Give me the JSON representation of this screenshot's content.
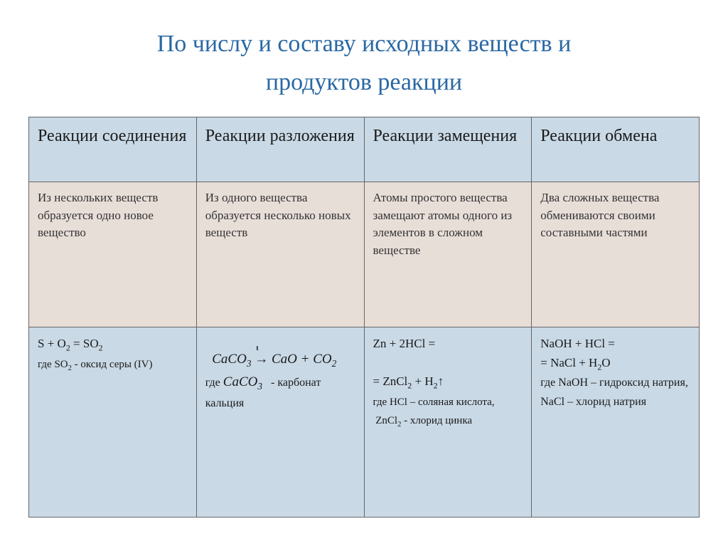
{
  "title_color": "#2968a3",
  "title_line1": "По числу и составу исходных веществ и",
  "title_line2": "продуктов реакции",
  "row_bg": {
    "header": "#c9d9e6",
    "desc": "#e8ded8",
    "example": "#c9d9e6"
  },
  "col_widths": [
    "25%",
    "25%",
    "25%",
    "25%"
  ],
  "columns": [
    {
      "header": "Реакции соединения",
      "desc": "Из нескольких веществ образуется одно новое вещество",
      "example_html": "S + O<span class='sub'>2</span> = SO<span class='sub'>2</span><br><span style='font-size:15px'>где SO<span class='sub'>2</span> - оксид серы (IV)</span>"
    },
    {
      "header": "Реакции разложения",
      "desc": "Из одного вещества образуется несколько новых веществ",
      "example_html": "<div style='height:20px'></div><span class='formula'>&nbsp;&nbsp;CaCO<span class='sub'>3</span> <span style='position:relative;font-style:normal'>→<span style='position:absolute;left:2px;top:-12px;font-size:10px;font-weight:bold'>t</span></span> CaO + CO<span class='sub'>2</span></span><br><span class='formula-note'>где <span class='formula'>CaCO<span class='sub'>3</span></span>&nbsp;&nbsp;&nbsp;- карбонат кальция</span>"
    },
    {
      "header": "Реакции замещения",
      "desc": "Атомы простого вещества замещают атомы одного из элементов в сложном веществе",
      "example_html": "Zn + 2HCl =<br><br>= ZnCl<span class='sub'>2</span> + H<span class='sub'>2</span>↑<br><span style='font-size:15px'>где HCl – соляная кислота,<br>&nbsp;ZnCl<span class='sub'>2</span> - хлорид цинка</span>"
    },
    {
      "header": "Реакции обмена",
      "desc": "Два сложных вещества обмениваются своими составными частями",
      "example_html": "NaOH + HCl =<br>= NaCl + H<span class='sub'>2</span>O<br><span style='font-size:16px'>где NaOH – гидроксид натрия,<br>NaCl – хлорид натрия</span>"
    }
  ]
}
